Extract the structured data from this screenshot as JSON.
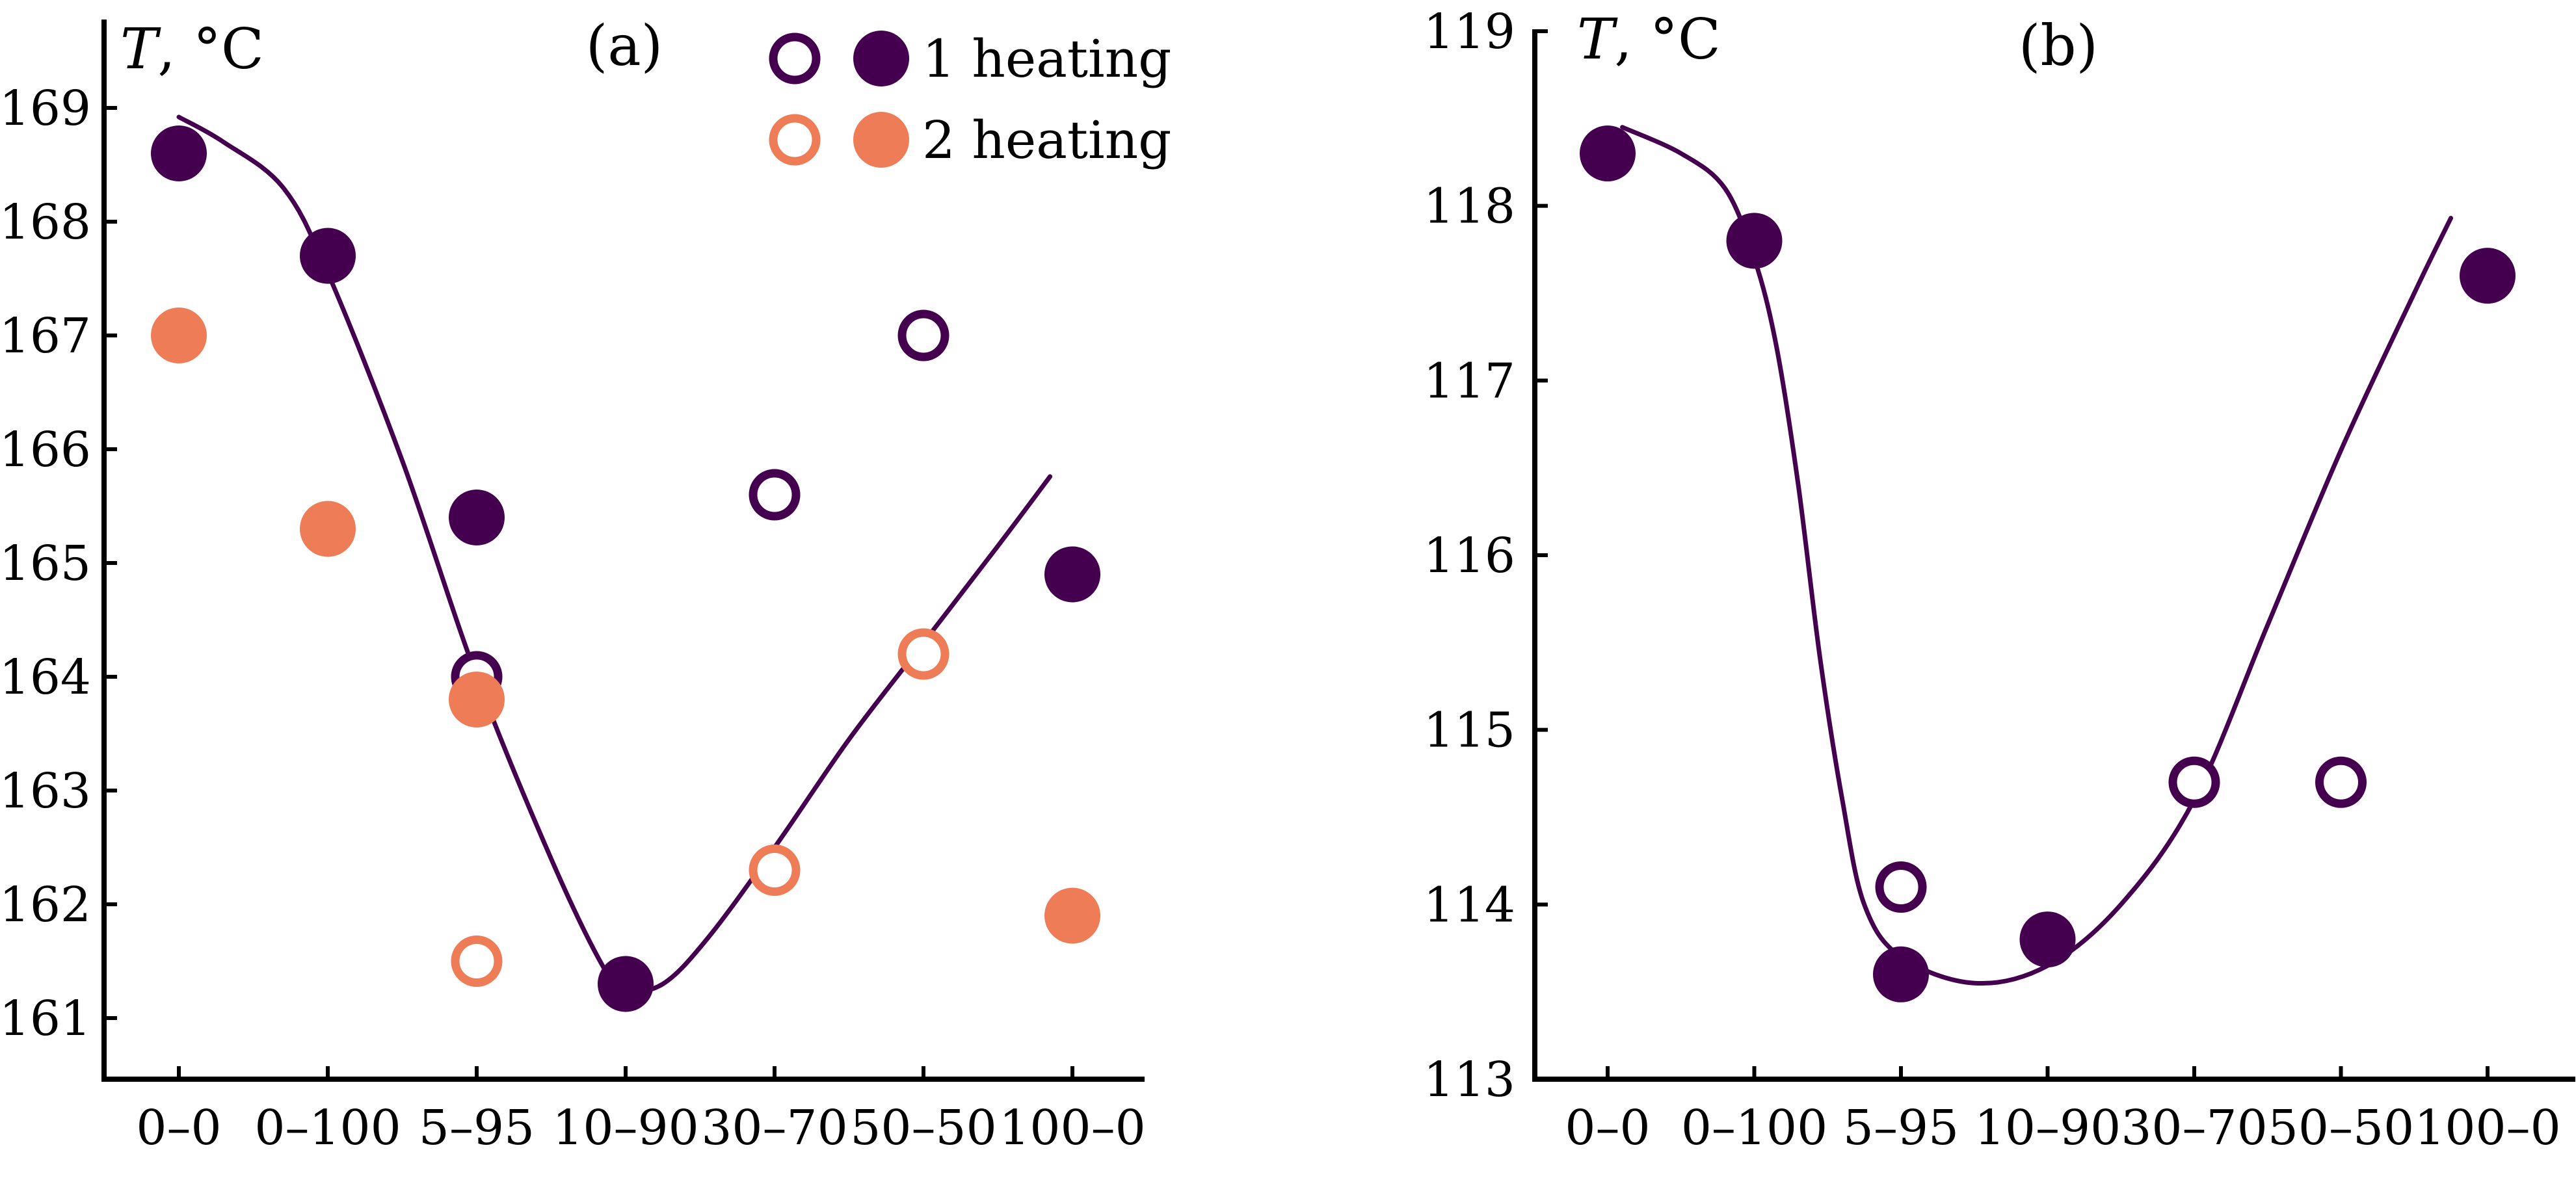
{
  "colors": {
    "heating1": "#44004e",
    "heating2": "#ee7c56",
    "axis": "#000000"
  },
  "legend": {
    "entries": [
      {
        "label": "1 heating",
        "series": "heating1"
      },
      {
        "label": "2 heating",
        "series": "heating2"
      }
    ]
  },
  "chart_data": [
    {
      "type": "scatter",
      "panel": "(a)",
      "title": "",
      "xlabel": "",
      "ylabel_var": "T",
      "ylabel_unit": ", °C",
      "categories": [
        "0–0",
        "0–100",
        "5–95",
        "10–90",
        "30–70",
        "50–50",
        "100–0"
      ],
      "ylim": [
        160.5,
        169.7
      ],
      "yticks": [
        161,
        162,
        163,
        164,
        165,
        166,
        167,
        168,
        169
      ],
      "grid": false,
      "legend_position": "top-right",
      "series": [
        {
          "group": "heating1",
          "style": "filled",
          "points": [
            [
              0,
              168.6
            ],
            [
              1,
              167.7
            ],
            [
              2,
              165.4
            ],
            [
              3,
              161.3
            ],
            [
              6,
              164.9
            ]
          ]
        },
        {
          "group": "heating1",
          "style": "open",
          "points": [
            [
              2,
              164.0
            ],
            [
              4,
              165.6
            ],
            [
              5,
              167.0
            ]
          ]
        },
        {
          "group": "heating2",
          "style": "filled",
          "points": [
            [
              0,
              167.0
            ],
            [
              1,
              165.3
            ],
            [
              2,
              163.8
            ],
            [
              6,
              161.9
            ]
          ]
        },
        {
          "group": "heating2",
          "style": "open",
          "points": [
            [
              2,
              161.5
            ],
            [
              4,
              162.3
            ],
            [
              5,
              164.2
            ]
          ]
        }
      ],
      "trend_line": {
        "color": "heating1",
        "points": [
          [
            0,
            168.92
          ],
          [
            0.3,
            168.7
          ],
          [
            0.7,
            168.3
          ],
          [
            1.0,
            167.55
          ],
          [
            1.5,
            165.9
          ],
          [
            2.0,
            164.0
          ],
          [
            2.5,
            162.4
          ],
          [
            2.85,
            161.45
          ],
          [
            3.0,
            161.25
          ],
          [
            3.25,
            161.3
          ],
          [
            3.55,
            161.7
          ],
          [
            4.0,
            162.5
          ],
          [
            4.5,
            163.45
          ],
          [
            5.0,
            164.3
          ],
          [
            5.5,
            165.15
          ],
          [
            5.85,
            165.76
          ]
        ]
      }
    },
    {
      "type": "scatter",
      "panel": "(b)",
      "title": "",
      "xlabel": "",
      "ylabel_var": "T",
      "ylabel_unit": ", °C",
      "categories": [
        "0–0",
        "0–100",
        "5–95",
        "10–90",
        "30–70",
        "50–50",
        "100–0"
      ],
      "ylim": [
        113,
        119
      ],
      "yticks": [
        113,
        114,
        115,
        116,
        117,
        118,
        119
      ],
      "grid": false,
      "series": [
        {
          "group": "heating1",
          "style": "filled",
          "points": [
            [
              0,
              118.3
            ],
            [
              1,
              117.8
            ],
            [
              2,
              113.6
            ],
            [
              3,
              113.8
            ],
            [
              6,
              117.6
            ]
          ]
        },
        {
          "group": "heating1",
          "style": "open",
          "points": [
            [
              2,
              114.1
            ],
            [
              4,
              114.7
            ],
            [
              5,
              114.7
            ]
          ]
        }
      ],
      "trend_line": {
        "color": "heating1",
        "points": [
          [
            0.1,
            118.45
          ],
          [
            0.5,
            118.3
          ],
          [
            0.8,
            118.1
          ],
          [
            1.0,
            117.7
          ],
          [
            1.15,
            117.2
          ],
          [
            1.3,
            116.4
          ],
          [
            1.45,
            115.4
          ],
          [
            1.6,
            114.6
          ],
          [
            1.75,
            114.0
          ],
          [
            2.0,
            113.7
          ],
          [
            2.5,
            113.55
          ],
          [
            3.0,
            113.65
          ],
          [
            3.5,
            114.0
          ],
          [
            4.0,
            114.6
          ],
          [
            4.5,
            115.6
          ],
          [
            5.0,
            116.6
          ],
          [
            5.5,
            117.5
          ],
          [
            5.75,
            117.93
          ]
        ]
      }
    }
  ]
}
